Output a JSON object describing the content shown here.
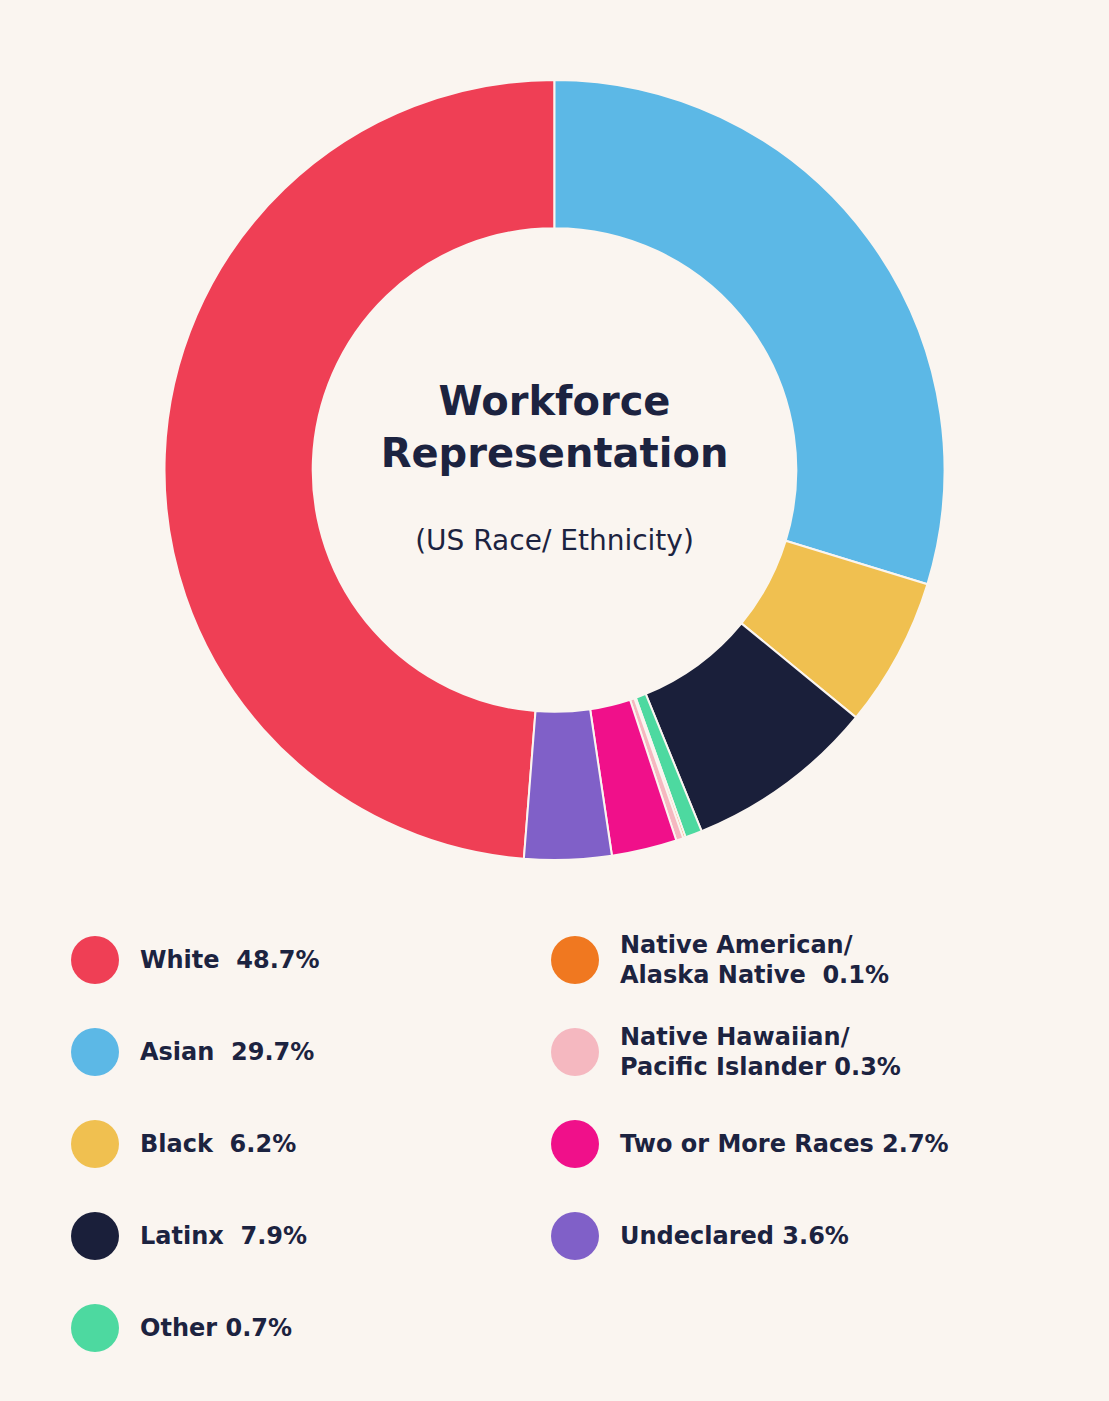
{
  "chart_data": {
    "type": "donut",
    "title": "Workforce\nRepresentation",
    "subtitle": "(US Race/ Ethnicity)",
    "categories": [
      "White  48.7%",
      "Asian  29.7%",
      "Black  6.2%",
      "Latinx  7.9%",
      "Other 0.7%",
      "Native American/\nAlaska Native  0.1%",
      "Native Hawaiian/\nPacific Islander 0.3%",
      "Two or More Races 2.7%",
      "Undeclared 3.6%"
    ],
    "values": [
      48.7,
      29.7,
      6.2,
      7.9,
      0.7,
      0.1,
      0.3,
      2.7,
      3.6
    ],
    "colors": [
      "#ef3f55",
      "#5cb8e6",
      "#f0c050",
      "#1a1f3a",
      "#4dd9a0",
      "#f07820",
      "#f5b8c0",
      "#f0108a",
      "#8060c8"
    ],
    "legend": "bottom"
  }
}
